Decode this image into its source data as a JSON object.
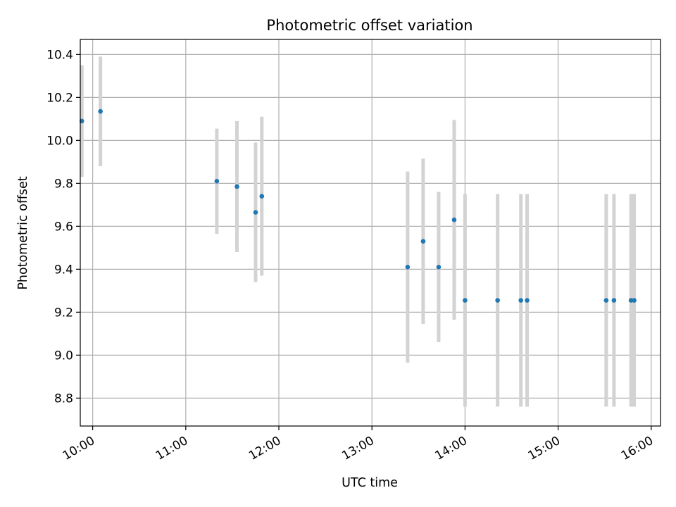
{
  "chart_data": {
    "type": "scatter",
    "title": "Photometric offset variation",
    "xlabel": "UTC time",
    "ylabel": "Photometric offset",
    "xlim": [
      "09:52",
      "16:06"
    ],
    "ylim": [
      8.67,
      10.47
    ],
    "x_ticks": [
      "10:00",
      "11:00",
      "12:00",
      "13:00",
      "14:00",
      "15:00",
      "16:00"
    ],
    "y_ticks": [
      "8.8",
      "9.0",
      "9.2",
      "9.4",
      "9.6",
      "9.8",
      "10.0",
      "10.2",
      "10.4"
    ],
    "grid": true,
    "colors": {
      "point": "#1f77b4",
      "errorbar": "#d3d3d3",
      "grid": "#b0b0b0"
    },
    "points": [
      {
        "x": "09:53",
        "y": 10.09,
        "err": 0.26
      },
      {
        "x": "10:05",
        "y": 10.135,
        "err": 0.255
      },
      {
        "x": "11:20",
        "y": 9.81,
        "err": 0.245
      },
      {
        "x": "11:33",
        "y": 9.785,
        "err": 0.305
      },
      {
        "x": "11:45",
        "y": 9.665,
        "err": 0.325
      },
      {
        "x": "11:49",
        "y": 9.74,
        "err": 0.37
      },
      {
        "x": "13:23",
        "y": 9.41,
        "err": 0.445
      },
      {
        "x": "13:33",
        "y": 9.53,
        "err": 0.385
      },
      {
        "x": "13:43",
        "y": 9.41,
        "err": 0.35
      },
      {
        "x": "13:53",
        "y": 9.63,
        "err": 0.465
      },
      {
        "x": "14:00",
        "y": 9.255,
        "err": 0.495
      },
      {
        "x": "14:21",
        "y": 9.255,
        "err": 0.495
      },
      {
        "x": "14:36",
        "y": 9.255,
        "err": 0.495
      },
      {
        "x": "14:40",
        "y": 9.255,
        "err": 0.495
      },
      {
        "x": "15:31",
        "y": 9.255,
        "err": 0.495
      },
      {
        "x": "15:36",
        "y": 9.255,
        "err": 0.495
      },
      {
        "x": "15:47",
        "y": 9.255,
        "err": 0.495
      },
      {
        "x": "15:49",
        "y": 9.255,
        "err": 0.495
      }
    ]
  }
}
